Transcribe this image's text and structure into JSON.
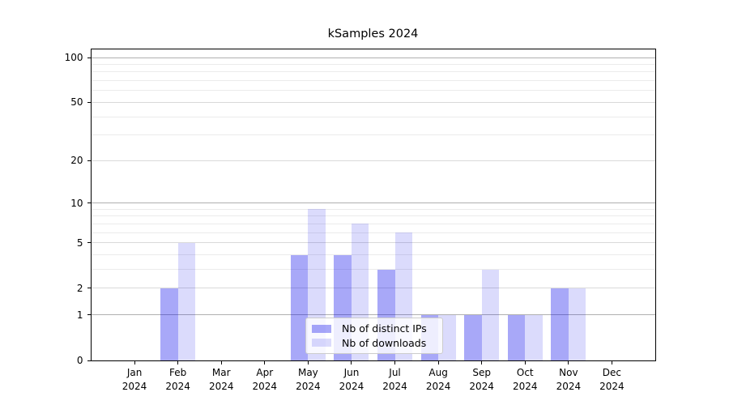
{
  "chart_data": {
    "type": "bar",
    "title": "kSamples 2024",
    "categories": [
      "Jan",
      "Feb",
      "Mar",
      "Apr",
      "May",
      "Jun",
      "Jul",
      "Aug",
      "Sep",
      "Oct",
      "Nov",
      "Dec"
    ],
    "category_year": "2024",
    "series": [
      {
        "name": "Nb of distinct IPs",
        "values": [
          0,
          2,
          0,
          0,
          4,
          4,
          3,
          1,
          1,
          1,
          2,
          0
        ],
        "color": "rgba(0,0,235,0.34)"
      },
      {
        "name": "Nb of downloads",
        "values": [
          0,
          5,
          0,
          0,
          9,
          7,
          6,
          1,
          3,
          1,
          2,
          0
        ],
        "color": "rgba(0,0,235,0.14)"
      }
    ],
    "yscale": "log1p",
    "ylim": [
      0,
      113
    ],
    "ytick_labels": [
      "0",
      "1",
      "2",
      "5",
      "10",
      "20",
      "50",
      "100"
    ],
    "ytick_values": [
      0,
      1,
      2,
      5,
      10,
      20,
      50,
      100
    ],
    "minor_gridline_values": [
      3,
      4,
      6,
      7,
      8,
      9,
      30,
      40,
      60,
      70,
      80,
      90
    ],
    "grid": true,
    "legend_position": "lower center",
    "xlabel": "",
    "ylabel": ""
  },
  "colors": {
    "background": "#ffffff",
    "spine": "#000000",
    "grid_decade": "#b0b0b0",
    "grid_major": "#d9d9d9",
    "grid_minor": "#ebebeb",
    "bar_distinct_ips": "rgba(0,0,235,0.34)",
    "bar_downloads": "rgba(0,0,235,0.14)",
    "legend_border": "#cccccc",
    "legend_background": "rgba(255,255,255,0.8)",
    "text": "#000000"
  }
}
